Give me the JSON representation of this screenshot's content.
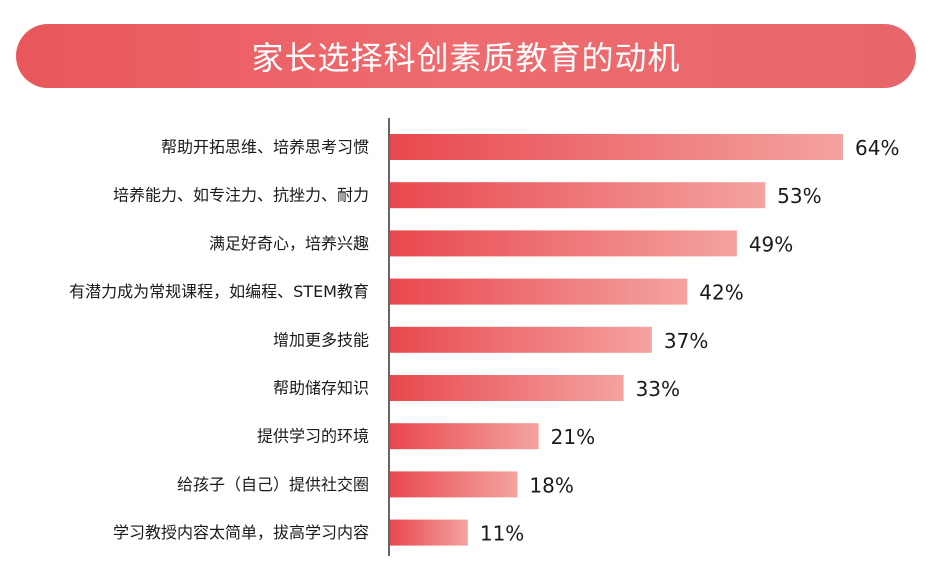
{
  "chart_data": {
    "type": "bar",
    "orientation": "horizontal",
    "title": "家长选择科创素质教育的动机",
    "categories": [
      "帮助开拓思维、培养思考习惯",
      "培养能力、如专注力、抗挫力、耐力",
      "满足好奇心，培养兴趣",
      "有潜力成为常规课程，如编程、STEM教育",
      "增加更多技能",
      "帮助储存知识",
      "提供学习的环境",
      "给孩子（自己）提供社交圈",
      "学习教授内容太简单，拔高学习内容"
    ],
    "values": [
      64,
      53,
      49,
      42,
      37,
      33,
      21,
      18,
      11
    ],
    "value_labels": [
      "64%",
      "53%",
      "49%",
      "42%",
      "37%",
      "33%",
      "21%",
      "18%",
      "11%"
    ],
    "unit": "%",
    "xlim": [
      0,
      64
    ],
    "grid": false,
    "legend": "none",
    "colors": {
      "banner": "#e9575c",
      "bar_start": "#e8484d",
      "bar_end": "#f4a3a1",
      "axis": "#333333"
    }
  }
}
